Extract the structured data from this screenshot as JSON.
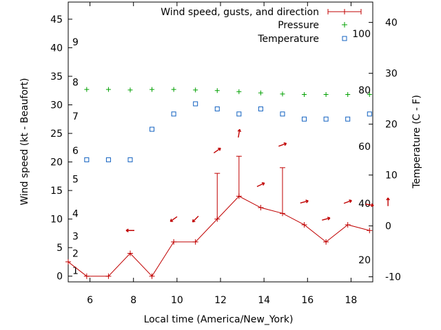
{
  "chart_data": {
    "type": "line",
    "xlabel": "Local time (America/New_York)",
    "ylabel_left": "Wind speed (kt - Beaufort)",
    "ylabel_right": "Temperature (C - F)",
    "x_ticks": [
      6,
      8,
      10,
      12,
      14,
      16,
      18
    ],
    "xlim": [
      5,
      19
    ],
    "ylim_left": [
      -1,
      48
    ],
    "yticks_left": [
      0,
      5,
      10,
      15,
      20,
      25,
      30,
      35,
      40,
      45
    ],
    "ylim_right": [
      -11,
      44
    ],
    "yticks_right": [
      -10,
      0,
      10,
      20,
      30,
      40
    ],
    "beaufort_labels": [
      {
        "label": "1",
        "y": 1
      },
      {
        "label": "2",
        "y": 4
      },
      {
        "label": "3",
        "y": 7
      },
      {
        "label": "4",
        "y": 11
      },
      {
        "label": "5",
        "y": 17
      },
      {
        "label": "6",
        "y": 22
      },
      {
        "label": "7",
        "y": 28
      },
      {
        "label": "8",
        "y": 34
      },
      {
        "label": "9",
        "y": 41
      }
    ],
    "fahrenheit_labels": [
      {
        "label": "20",
        "y": -6.7
      },
      {
        "label": "40",
        "y": 4.4
      },
      {
        "label": "60",
        "y": 15.6
      },
      {
        "label": "80",
        "y": 26.7
      },
      {
        "label": "100",
        "y": 37.8
      }
    ],
    "legend": {
      "position": "top-right",
      "entries": [
        "Wind speed, gusts, and direction",
        "Pressure",
        "Temperature"
      ]
    },
    "colors": {
      "wind": "#c00000",
      "pressure": "#00a000",
      "temperature": "#1060c0"
    },
    "wind": {
      "name": "Wind speed, gusts, and direction",
      "x": [
        5.0,
        5.85,
        6.85,
        7.85,
        8.85,
        9.85,
        10.85,
        11.85,
        12.85,
        13.85,
        14.85,
        15.85,
        16.85,
        17.85,
        18.85
      ],
      "y": [
        2.5,
        0,
        0,
        4,
        0,
        6,
        6,
        10,
        14,
        12,
        11,
        9,
        6,
        9,
        8
      ],
      "gusts": [
        {
          "x": 11.85,
          "from": 10,
          "to": 18
        },
        {
          "x": 12.85,
          "from": 14,
          "to": 21
        },
        {
          "x": 14.85,
          "from": 11,
          "to": 19
        }
      ]
    },
    "wind_direction_arrows": [
      {
        "x": 7.85,
        "y": 8,
        "angle_deg": 180
      },
      {
        "x": 9.85,
        "y": 10,
        "angle_deg": 145
      },
      {
        "x": 10.85,
        "y": 10,
        "angle_deg": 135
      },
      {
        "x": 11.85,
        "y": 22,
        "angle_deg": -35
      },
      {
        "x": 12.85,
        "y": 25,
        "angle_deg": -80
      },
      {
        "x": 13.85,
        "y": 16,
        "angle_deg": -25
      },
      {
        "x": 14.85,
        "y": 23,
        "angle_deg": -20
      },
      {
        "x": 15.85,
        "y": 13,
        "angle_deg": -15
      },
      {
        "x": 16.85,
        "y": 10,
        "angle_deg": -15
      },
      {
        "x": 17.85,
        "y": 13,
        "angle_deg": -20
      },
      {
        "x": 18.85,
        "y": 12.5,
        "angle_deg": 10
      },
      {
        "x": 19.7,
        "y": 13,
        "angle_deg": -90
      }
    ],
    "pressure": {
      "name": "Pressure",
      "x": [
        5.85,
        6.85,
        7.85,
        8.85,
        9.85,
        10.85,
        11.85,
        12.85,
        13.85,
        14.85,
        15.85,
        16.85,
        17.85,
        18.85
      ],
      "y": [
        32.7,
        32.7,
        32.6,
        32.7,
        32.7,
        32.6,
        32.5,
        32.3,
        32.1,
        31.9,
        31.8,
        31.8,
        31.8,
        31.8
      ]
    },
    "temperature": {
      "name": "Temperature",
      "x": [
        5.85,
        6.85,
        7.85,
        8.85,
        9.85,
        10.85,
        11.85,
        12.85,
        13.85,
        14.85,
        15.85,
        16.85,
        17.85,
        18.85
      ],
      "y": [
        13,
        13,
        13,
        19,
        22,
        24,
        23,
        22,
        23,
        22,
        21,
        21,
        21,
        22
      ]
    }
  }
}
